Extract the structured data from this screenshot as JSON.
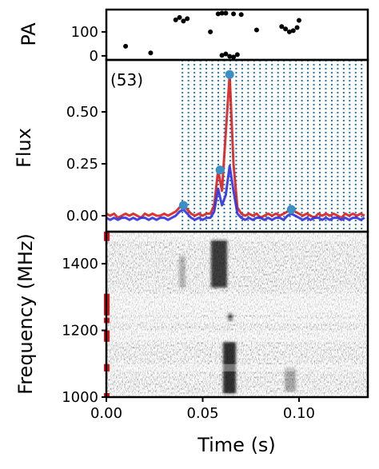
{
  "chart_data": [
    {
      "type": "scatter",
      "ylabel": "PA",
      "color": "#000000",
      "x": [
        0.01,
        0.023,
        0.036,
        0.038,
        0.04,
        0.042,
        0.058,
        0.062,
        0.066,
        0.07,
        0.06,
        0.064,
        0.068,
        0.062,
        0.078,
        0.091,
        0.093,
        0.095,
        0.097,
        0.099,
        0.1,
        0.054,
        0.06,
        0.066
      ],
      "y": [
        40,
        12,
        150,
        160,
        145,
        155,
        175,
        178,
        175,
        172,
        2,
        -2,
        5,
        8,
        108,
        122,
        112,
        100,
        105,
        118,
        148,
        100,
        178,
        -5
      ],
      "xlim": [
        0,
        0.1357
      ],
      "ylim": [
        -17,
        193
      ],
      "yticks": [
        0,
        100
      ]
    },
    {
      "type": "line",
      "ylabel": "Flux",
      "annotation": "(53)",
      "x": [
        0,
        0.002,
        0.004,
        0.006,
        0.008,
        0.01,
        0.012,
        0.014,
        0.016,
        0.018,
        0.02,
        0.022,
        0.024,
        0.026,
        0.028,
        0.03,
        0.032,
        0.034,
        0.036,
        0.038,
        0.04,
        0.042,
        0.044,
        0.046,
        0.048,
        0.05,
        0.052,
        0.054,
        0.056,
        0.058,
        0.06,
        0.062,
        0.064,
        0.066,
        0.068,
        0.07,
        0.072,
        0.074,
        0.076,
        0.078,
        0.08,
        0.082,
        0.084,
        0.086,
        0.088,
        0.09,
        0.092,
        0.094,
        0.096,
        0.098,
        0.1,
        0.102,
        0.104,
        0.106,
        0.108,
        0.11,
        0.112,
        0.114,
        0.116,
        0.118,
        0.12,
        0.122,
        0.124,
        0.126,
        0.128,
        0.13,
        0.132,
        0.134
      ],
      "series": [
        {
          "color": "#d62020",
          "values": [
            0.01,
            0.0,
            0.01,
            -0.01,
            0.0,
            0.01,
            0.0,
            0.01,
            0.0,
            -0.01,
            0.01,
            0.0,
            0.01,
            0.0,
            0.0,
            0.01,
            0.0,
            0.01,
            0.02,
            0.04,
            0.05,
            0.03,
            0.01,
            0.0,
            0.01,
            0.0,
            0.01,
            0.01,
            0.05,
            0.22,
            0.12,
            0.4,
            0.68,
            0.25,
            0.04,
            0.01,
            0.0,
            0.01,
            0.0,
            0.01,
            -0.01,
            0.0,
            0.01,
            0.0,
            0.01,
            0.0,
            0.01,
            0.02,
            0.03,
            0.02,
            0.01,
            0.0,
            0.01,
            0.0,
            -0.01,
            0.01,
            0.0,
            0.01,
            0.0,
            0.01,
            0.0,
            -0.01,
            0.01,
            0.0,
            0.01,
            0.0,
            0.01,
            0.0
          ]
        },
        {
          "color": "#3030e0",
          "values": [
            -0.01,
            -0.02,
            -0.01,
            -0.02,
            -0.01,
            -0.01,
            -0.02,
            -0.01,
            -0.02,
            -0.01,
            -0.01,
            -0.02,
            -0.01,
            -0.02,
            -0.01,
            -0.01,
            -0.02,
            -0.01,
            0.0,
            0.02,
            0.03,
            0.01,
            -0.01,
            -0.02,
            -0.01,
            -0.02,
            -0.01,
            -0.01,
            0.02,
            0.13,
            0.05,
            0.1,
            0.24,
            0.12,
            0.01,
            -0.01,
            -0.02,
            -0.01,
            -0.02,
            -0.01,
            -0.01,
            -0.02,
            -0.01,
            -0.02,
            -0.01,
            -0.01,
            -0.02,
            0.0,
            0.01,
            0.0,
            -0.01,
            -0.02,
            -0.01,
            -0.02,
            -0.01,
            -0.01,
            -0.02,
            -0.01,
            -0.02,
            -0.01,
            -0.01,
            -0.02,
            -0.01,
            -0.02,
            -0.01,
            -0.01,
            -0.02,
            -0.01
          ]
        }
      ],
      "markers": {
        "color": "#3a8fc4",
        "x": [
          0.04,
          0.059,
          0.064,
          0.096
        ],
        "y": [
          0.05,
          0.22,
          0.68,
          0.03
        ]
      },
      "vlines": {
        "color": "#2a7ab0",
        "x": [
          0.0395,
          0.0426,
          0.0457,
          0.0488,
          0.0519,
          0.055,
          0.0581,
          0.0612,
          0.0643,
          0.0674,
          0.0705,
          0.0736,
          0.0767,
          0.0798,
          0.0829,
          0.086,
          0.0891,
          0.0922,
          0.0953,
          0.0984,
          0.1015,
          0.1046,
          0.1077,
          0.1108,
          0.1139,
          0.117,
          0.1201,
          0.1232,
          0.1263,
          0.1294,
          0.1325
        ]
      },
      "xlim": [
        0,
        0.1357
      ],
      "ylim": [
        -0.077,
        0.75
      ],
      "yticks": [
        {
          "value": 0,
          "label": "0.00"
        },
        {
          "value": 0.25,
          "label": "0.25"
        },
        {
          "value": 0.5,
          "label": "0.50"
        }
      ]
    },
    {
      "type": "heatmap",
      "ylabel": "Frequency (MHz)",
      "xlabel": "Time (s)",
      "masked_channels": [
        [
          1468,
          1496
        ],
        [
          1245,
          1310
        ],
        [
          1222,
          1238
        ],
        [
          1166,
          1200
        ],
        [
          1077,
          1099
        ],
        [
          1000,
          1012
        ]
      ],
      "mask_color": "#e01010",
      "xlim": [
        0,
        0.1357
      ],
      "ylim": [
        1000,
        1496
      ],
      "xticks": [
        {
          "value": 0,
          "label": "0.00"
        },
        {
          "value": 0.05,
          "label": "0.05"
        },
        {
          "value": 0.1,
          "label": "0.10"
        }
      ],
      "yticks": [
        1000,
        1200,
        1400
      ]
    }
  ]
}
